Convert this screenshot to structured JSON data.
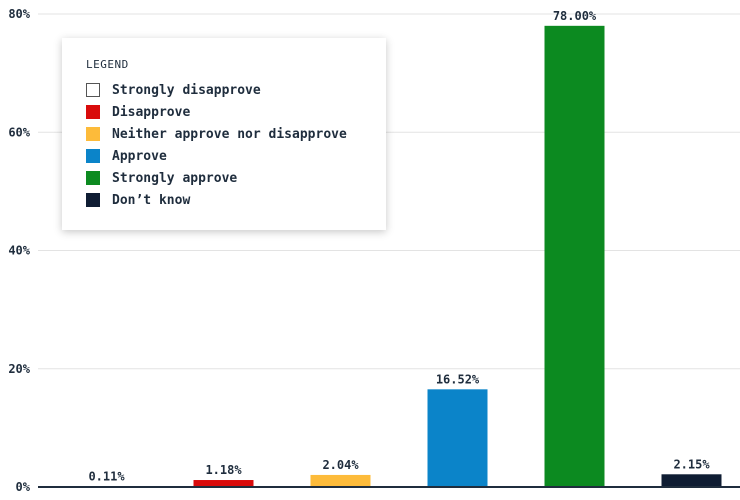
{
  "chart_data": {
    "type": "bar",
    "categories": [
      "Strongly disapprove",
      "Disapprove",
      "Neither approve nor disapprove",
      "Approve",
      "Strongly approve",
      "Don’t know"
    ],
    "values": [
      0.11,
      1.18,
      2.04,
      16.52,
      78.0,
      2.15
    ],
    "value_labels": [
      "0.11%",
      "1.18%",
      "2.04%",
      "16.52%",
      "78.00%",
      "2.15%"
    ],
    "colors": [
      "#ffffff",
      "#d90b0b",
      "#fdbb3a",
      "#0b84c9",
      "#0c8a20",
      "#0f1d33"
    ],
    "y_ticks": [
      0,
      20,
      40,
      60,
      80
    ],
    "y_tick_labels": [
      "0%",
      "20%",
      "40%",
      "60%",
      "80%"
    ],
    "ylim": [
      0,
      80
    ],
    "grid": true,
    "legend_placement": "top-left",
    "title": "",
    "xlabel": "",
    "ylabel": ""
  },
  "legend": {
    "title": "LEGEND",
    "items": [
      {
        "label": "Strongly disapprove",
        "color": "#ffffff",
        "bordered": true
      },
      {
        "label": "Disapprove",
        "color": "#d90b0b"
      },
      {
        "label": "Neither approve nor disapprove",
        "color": "#fdbb3a"
      },
      {
        "label": "Approve",
        "color": "#0b84c9"
      },
      {
        "label": "Strongly approve",
        "color": "#0c8a20"
      },
      {
        "label": "Don’t know",
        "color": "#0f1d33"
      }
    ]
  }
}
